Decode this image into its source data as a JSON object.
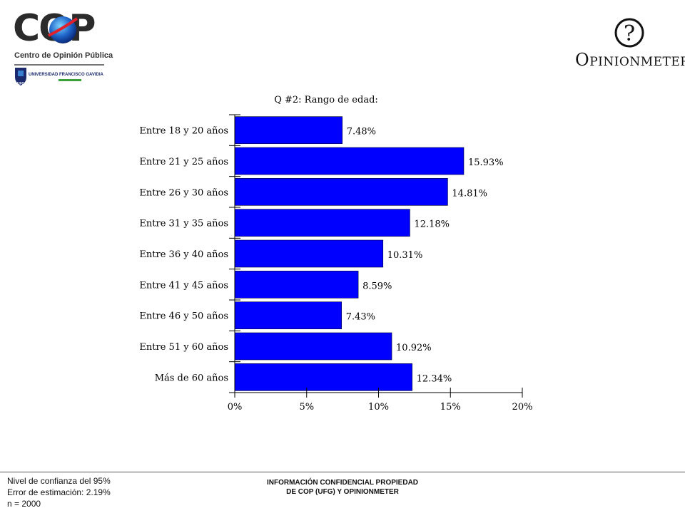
{
  "logos": {
    "cop_letters": "COP",
    "cop_subtitle": "Centro de Opinión Pública",
    "ufg_name": "UNIVERSIDAD FRANCISCO GAVIDIA",
    "ufg_abbrev": "UFG",
    "opinionmeter_mark": "?",
    "opinionmeter_initial": "O",
    "opinionmeter_rest": "PINIONMETER"
  },
  "chart_data": {
    "type": "bar",
    "orientation": "horizontal",
    "title": "Q #2: Rango de edad:",
    "categories": [
      "Entre 18 y 20 años",
      "Entre 21 y 25 años",
      "Entre 26 y 30 años",
      "Entre 31 y 35 años",
      "Entre 36 y 40 años",
      "Entre 41 y 45 años",
      "Entre 46 y 50 años",
      "Entre 51 y 60 años",
      "Más de 60 años"
    ],
    "values": [
      7.48,
      15.93,
      14.81,
      12.18,
      10.31,
      8.59,
      7.43,
      10.92,
      12.34
    ],
    "value_labels": [
      "7.48%",
      "15.93%",
      "14.81%",
      "12.18%",
      "10.31%",
      "8.59%",
      "7.43%",
      "10.92%",
      "12.34%"
    ],
    "xlim": [
      0,
      20
    ],
    "xticks": [
      0,
      5,
      10,
      15,
      20
    ],
    "xtick_labels": [
      "0%",
      "5%",
      "10%",
      "15%",
      "20%"
    ],
    "bar_color": "#0000ff",
    "grid": false,
    "legend": "none"
  },
  "footer": {
    "confidence": "Nivel de confianza del 95%",
    "error": "Error de estimación: 2.19%",
    "sample": "n = 2000",
    "confidential_line1": "INFORMACIÓN CONFIDENCIAL PROPIEDAD",
    "confidential_line2": "DE COP (UFG) Y OPINIONMETER"
  }
}
